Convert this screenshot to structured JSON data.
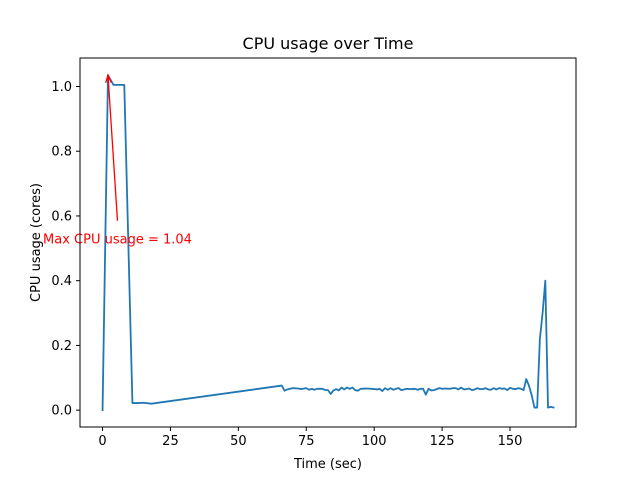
{
  "chart_data": {
    "type": "line",
    "title": "CPU usage over Time",
    "xlabel": "Time (sec)",
    "ylabel": "CPU usage (cores)",
    "xlim": [
      -8.3,
      174.3
    ],
    "ylim": [
      -0.052,
      1.088
    ],
    "xticks": [
      0,
      25,
      50,
      75,
      100,
      125,
      150
    ],
    "yticks": [
      0.0,
      0.2,
      0.4,
      0.6,
      0.8,
      1.0
    ],
    "xtick_labels": [
      "0",
      "25",
      "50",
      "75",
      "100",
      "125",
      "150"
    ],
    "ytick_labels": [
      "0.0",
      "0.2",
      "0.4",
      "0.6",
      "0.8",
      "1.0"
    ],
    "grid": false,
    "series": [
      {
        "color": "#1f77b4",
        "x": [
          0,
          2,
          4,
          5,
          7,
          8,
          11,
          13,
          15,
          18,
          66,
          67,
          68,
          70,
          72,
          73,
          75,
          76,
          77,
          78,
          79,
          81,
          82,
          83,
          84,
          85,
          86,
          87,
          88,
          89,
          90,
          91,
          92,
          93,
          94,
          95,
          97,
          99,
          101,
          102,
          103,
          104,
          105,
          106,
          107,
          108,
          109,
          110,
          111,
          112,
          113,
          115,
          116,
          117,
          118,
          119,
          120,
          121,
          122,
          124,
          125,
          126,
          128,
          129,
          130,
          131,
          132,
          133,
          134,
          135,
          136,
          137,
          138,
          139,
          140,
          141,
          142,
          143,
          144,
          145,
          146,
          147,
          148,
          149,
          150,
          151,
          152,
          153,
          154,
          155,
          156,
          157,
          158,
          159,
          160,
          161,
          162,
          163,
          164,
          165,
          166
        ],
        "y": [
          0.0,
          1.035,
          1.005,
          1.005,
          1.005,
          1.005,
          0.022,
          0.022,
          0.023,
          0.02,
          0.076,
          0.06,
          0.064,
          0.068,
          0.067,
          0.065,
          0.068,
          0.063,
          0.066,
          0.063,
          0.066,
          0.066,
          0.062,
          0.062,
          0.05,
          0.061,
          0.065,
          0.061,
          0.07,
          0.064,
          0.07,
          0.066,
          0.07,
          0.062,
          0.06,
          0.066,
          0.067,
          0.066,
          0.064,
          0.066,
          0.059,
          0.068,
          0.063,
          0.068,
          0.063,
          0.066,
          0.068,
          0.062,
          0.064,
          0.066,
          0.065,
          0.066,
          0.063,
          0.066,
          0.066,
          0.048,
          0.066,
          0.061,
          0.062,
          0.068,
          0.066,
          0.067,
          0.066,
          0.068,
          0.068,
          0.064,
          0.07,
          0.064,
          0.065,
          0.067,
          0.062,
          0.064,
          0.068,
          0.065,
          0.065,
          0.068,
          0.064,
          0.063,
          0.068,
          0.064,
          0.068,
          0.066,
          0.067,
          0.062,
          0.069,
          0.066,
          0.065,
          0.068,
          0.066,
          0.062,
          0.096,
          0.075,
          0.046,
          0.008,
          0.008,
          0.22,
          0.3,
          0.4,
          0.008,
          0.01,
          0.008
        ]
      }
    ],
    "annotations": [
      {
        "text": "Max CPU usage = 1.04",
        "color": "#ff0000",
        "text_x": 5.5,
        "text_y": 0.53,
        "arrow_from_x": 5.5,
        "arrow_from_y": 0.585,
        "arrow_to_x": 2,
        "arrow_to_y": 1.035
      }
    ]
  }
}
